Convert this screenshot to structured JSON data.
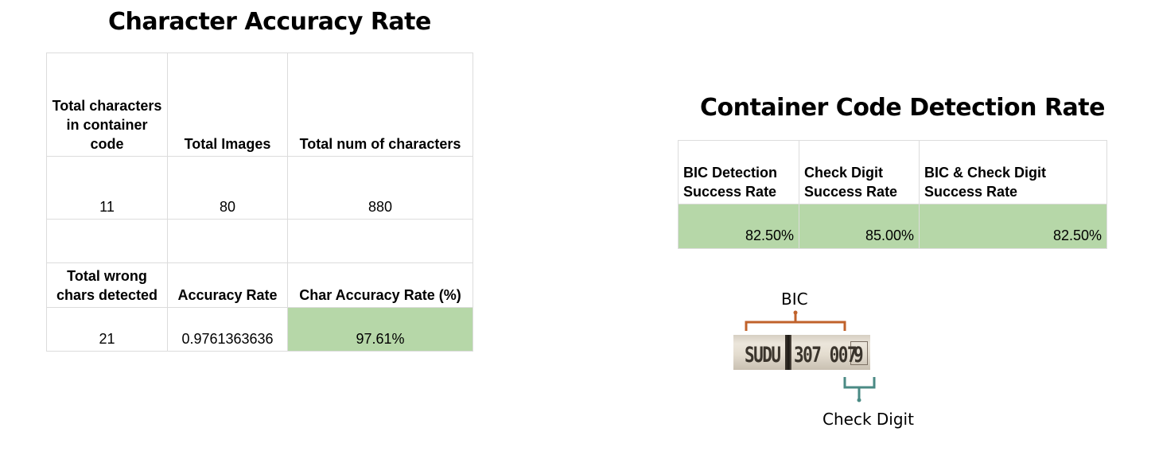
{
  "left_panel": {
    "title": "Character Accuracy Rate",
    "table": {
      "header1": [
        "Total characters in container code",
        "Total Images",
        "Total num of characters"
      ],
      "row1": [
        "11",
        "80",
        "880"
      ],
      "header2": [
        "Total wrong chars detected",
        "Accuracy Rate",
        "Char Accuracy Rate (%)"
      ],
      "row2": [
        "21",
        "0.9761363636",
        "97.61%"
      ]
    }
  },
  "right_panel": {
    "title": "Container Code Detection Rate",
    "table": {
      "headers": [
        "BIC Detection Success Rate",
        "Check Digit Success Rate",
        "BIC & Check Digit Success Rate"
      ],
      "values": [
        "82.50%",
        "85.00%",
        "82.50%"
      ]
    },
    "diagram": {
      "bic_label": "BIC",
      "check_digit_label": "Check Digit",
      "plate_owner_code": "SUDU",
      "plate_serial": "307 007",
      "plate_check_digit": "9",
      "bracket_colors": {
        "bic": "#c0622b",
        "check_digit": "#4a8a84"
      }
    }
  },
  "colors": {
    "highlight_green": "#b6d7a8",
    "grid_line": "#dcdcdc"
  }
}
